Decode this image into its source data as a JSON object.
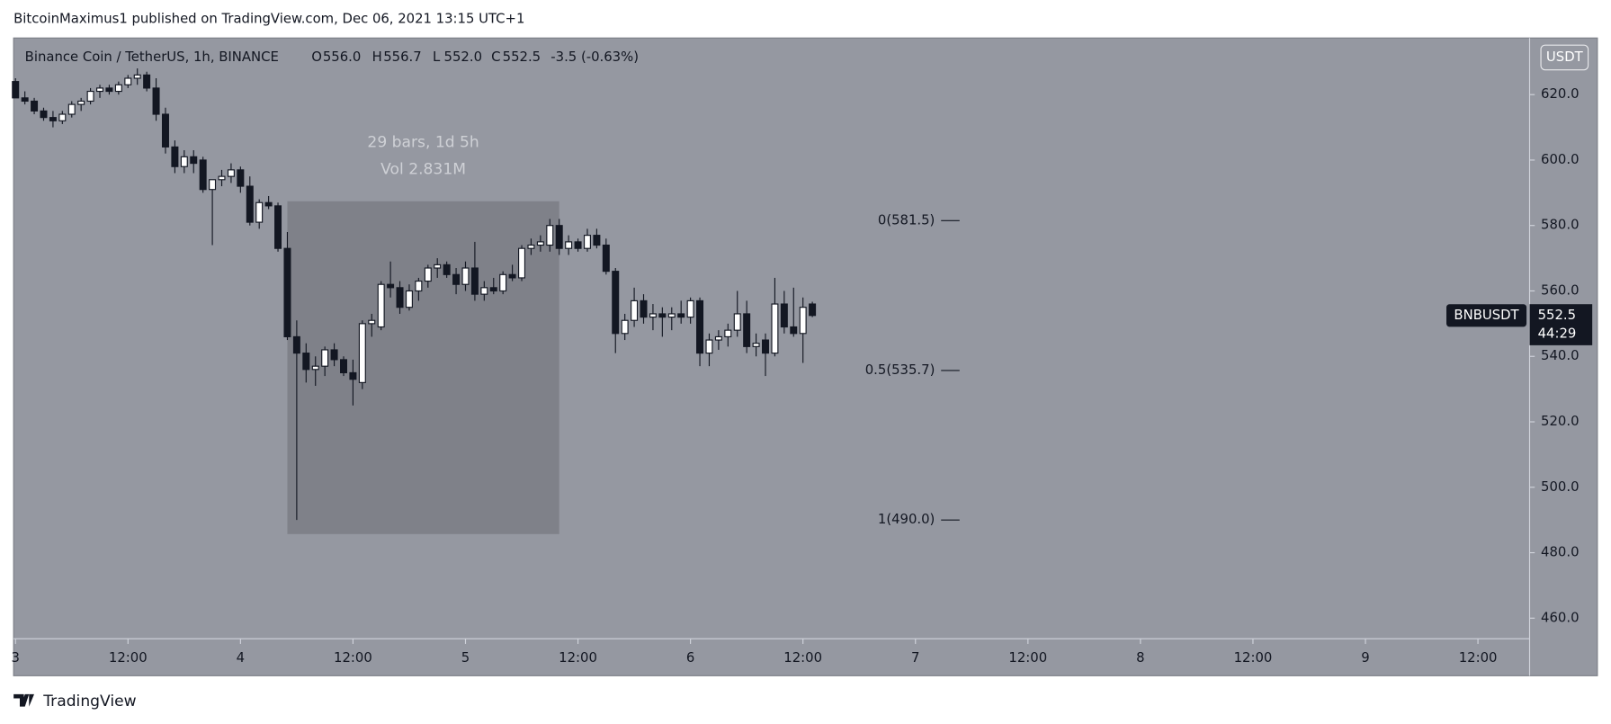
{
  "header": "BitcoinMaximus1 published on TradingView.com, Dec 06, 2021 13:15 UTC+1",
  "footer": "TradingView",
  "chart_data": {
    "type": "candlestick",
    "symbol_title": "Binance Coin / TetherUS, 1h, BINANCE",
    "ohlc_legend": [
      {
        "label": "O",
        "value": "556.0"
      },
      {
        "label": "H",
        "value": "556.7"
      },
      {
        "label": "L",
        "value": "552.0"
      },
      {
        "label": "C",
        "value": "552.5"
      }
    ],
    "change": "-3.5 (-0.63%)",
    "currency": "USDT",
    "x": [
      0,
      1,
      2,
      3,
      4,
      5,
      6,
      7,
      8,
      9,
      10,
      11,
      12,
      13,
      14,
      15,
      16,
      17,
      18,
      19,
      20,
      21,
      22,
      23,
      24,
      25,
      26,
      27,
      28,
      29,
      30,
      31,
      32,
      33,
      34,
      35,
      36,
      37,
      38,
      39,
      40,
      41,
      42,
      43,
      44,
      45,
      46,
      47,
      48,
      49,
      50,
      51,
      52,
      53,
      54,
      55,
      56,
      57,
      58,
      59,
      60,
      61,
      62,
      63,
      64,
      65,
      66,
      67,
      68,
      69,
      70,
      71,
      72,
      73,
      74,
      75,
      76,
      77,
      78,
      79,
      80,
      81,
      82,
      83,
      84,
      85
    ],
    "open": [
      624,
      619,
      618,
      615,
      613,
      612,
      614,
      617,
      618,
      621,
      622,
      621,
      623,
      625,
      626,
      622,
      614,
      604,
      598,
      601,
      600,
      591,
      594,
      595,
      597,
      592,
      581,
      587,
      586,
      573,
      546,
      541,
      536,
      537,
      542,
      539,
      535,
      532,
      550,
      549,
      562,
      561,
      555,
      560,
      563,
      567,
      568,
      565,
      562,
      567,
      559,
      561,
      560,
      565,
      564,
      573,
      574,
      574,
      580,
      573,
      575,
      573,
      577,
      574,
      566,
      547,
      551,
      557,
      552,
      553,
      552,
      553,
      552,
      557,
      541,
      545,
      546,
      548,
      553,
      543,
      545,
      541,
      556,
      549,
      547,
      556
    ],
    "high": [
      625,
      621,
      619,
      616,
      615,
      615,
      618,
      619,
      622,
      623,
      623,
      624,
      626,
      628,
      627,
      625,
      616,
      606,
      603,
      603,
      601,
      594,
      597,
      599,
      598,
      595,
      588,
      589,
      587,
      578,
      551,
      544,
      540,
      543,
      544,
      540,
      539,
      551,
      553,
      563,
      569,
      563,
      562,
      564,
      568,
      570,
      569,
      567,
      569,
      575,
      563,
      564,
      566,
      568,
      574,
      576,
      577,
      582,
      582,
      577,
      576,
      579,
      579,
      576,
      567,
      553,
      561,
      559,
      556,
      555,
      555,
      557,
      558,
      558,
      547,
      548,
      550,
      560,
      557,
      547,
      547,
      564,
      560,
      561,
      558,
      556.7
    ],
    "low": [
      619,
      617,
      614,
      612,
      610,
      611,
      613,
      615,
      617,
      619,
      620,
      620,
      622,
      623,
      621,
      612,
      602,
      596,
      596,
      596,
      590,
      574,
      592,
      593,
      590,
      580,
      579,
      585,
      572,
      545,
      490,
      532,
      531,
      534,
      537,
      534,
      525,
      530,
      546,
      548,
      558,
      553,
      554,
      557,
      561,
      564,
      564,
      559,
      560,
      557,
      557,
      559,
      559,
      563,
      563,
      571,
      572,
      572,
      571,
      571,
      572,
      572,
      573,
      565,
      541,
      545,
      549,
      550,
      548,
      546,
      548,
      550,
      550,
      537,
      537,
      542,
      543,
      546,
      541,
      540,
      534,
      540,
      547,
      546,
      538,
      552
    ],
    "close": [
      619,
      618,
      615,
      613,
      612,
      614,
      617,
      618,
      621,
      622,
      621,
      623,
      625,
      626,
      622,
      614,
      604,
      598,
      601,
      599,
      591,
      594,
      595,
      597,
      592,
      581,
      587,
      586,
      573,
      546,
      541,
      536,
      537,
      542,
      539,
      535,
      533,
      550,
      551,
      562,
      561,
      555,
      560,
      563,
      567,
      568,
      565,
      562,
      567,
      559,
      561,
      560,
      565,
      564,
      573,
      574,
      575,
      580,
      573,
      575,
      573,
      577,
      574,
      566,
      547,
      551,
      557,
      552,
      553,
      552,
      553,
      552,
      557,
      541,
      545,
      546,
      548,
      553,
      543,
      544,
      541,
      556,
      549,
      547,
      555,
      552.5
    ],
    "up_color": "#ffffff",
    "down_color": "#131722",
    "xlim": [
      -0.2,
      161.4
    ],
    "xticks": [
      {
        "value": 0,
        "label": "3"
      },
      {
        "value": 12,
        "label": "12:00"
      },
      {
        "value": 24,
        "label": "4"
      },
      {
        "value": 36,
        "label": "12:00"
      },
      {
        "value": 48,
        "label": "5"
      },
      {
        "value": 60,
        "label": "12:00"
      },
      {
        "value": 72,
        "label": "6"
      },
      {
        "value": 84,
        "label": "12:00"
      },
      {
        "value": 96,
        "label": "7"
      },
      {
        "value": 108,
        "label": "12:00"
      },
      {
        "value": 120,
        "label": "8"
      },
      {
        "value": 132,
        "label": "12:00"
      },
      {
        "value": 144,
        "label": "9"
      },
      {
        "value": 156,
        "label": "12:00"
      }
    ],
    "ylim": [
      453.7,
      637.3
    ],
    "yticks": [
      {
        "value": 460,
        "label": "460.0"
      },
      {
        "value": 480,
        "label": "480.0"
      },
      {
        "value": 500,
        "label": "500.0"
      },
      {
        "value": 520,
        "label": "520.0"
      },
      {
        "value": 540,
        "label": "540.0"
      },
      {
        "value": 560,
        "label": "560.0"
      },
      {
        "value": 580,
        "label": "580.0"
      },
      {
        "value": 600,
        "label": "600.0"
      },
      {
        "value": 620,
        "label": "620.0"
      }
    ],
    "range_box": {
      "x": [
        29,
        58
      ],
      "y": [
        587.4,
        485.7
      ],
      "labels": [
        "29 bars, 1d 5h",
        "Vol 2.831M"
      ]
    },
    "fib_levels": [
      {
        "value": 581.5,
        "label": "0(581.5)"
      },
      {
        "value": 535.7,
        "label": "0.5(535.7)"
      },
      {
        "value": 490.0,
        "label": "1(490.0)"
      }
    ],
    "last_price": {
      "symbol": "BNBUSDT",
      "value": 552.5,
      "countdown": "44:29"
    }
  }
}
